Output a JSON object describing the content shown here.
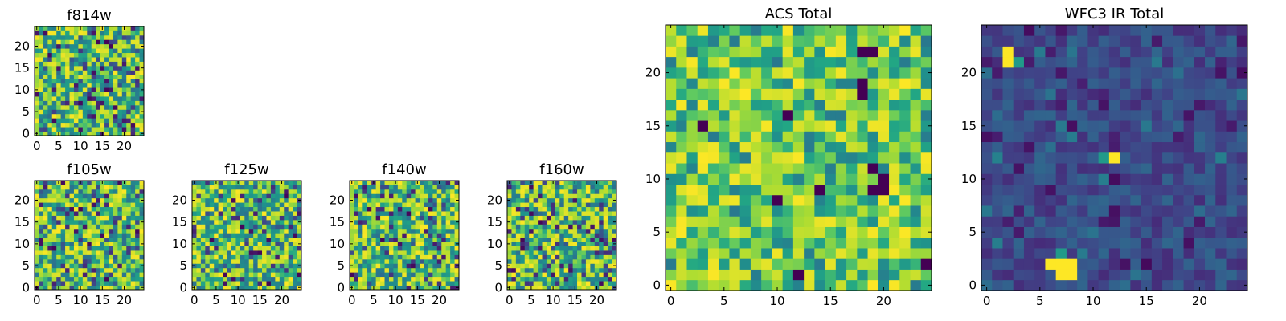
{
  "chart_data": [
    {
      "type": "heatmap",
      "id": "f814w",
      "title": "f814w",
      "grid": 25,
      "xticks": [
        0,
        5,
        10,
        15,
        20
      ],
      "yticks": [
        0,
        5,
        10,
        15,
        20
      ],
      "xlim": [
        0,
        24
      ],
      "ylim": [
        0,
        24
      ],
      "seed": 11,
      "style": "mid",
      "colormap": "viridis"
    },
    {
      "type": "heatmap",
      "id": "f105w",
      "title": "f105w",
      "grid": 25,
      "xticks": [
        0,
        5,
        10,
        15,
        20
      ],
      "yticks": [
        0,
        5,
        10,
        15,
        20
      ],
      "xlim": [
        0,
        24
      ],
      "ylim": [
        0,
        24
      ],
      "seed": 23,
      "style": "mid",
      "colormap": "viridis"
    },
    {
      "type": "heatmap",
      "id": "f125w",
      "title": "f125w",
      "grid": 25,
      "xticks": [
        0,
        5,
        10,
        15,
        20
      ],
      "yticks": [
        0,
        5,
        10,
        15,
        20
      ],
      "xlim": [
        0,
        24
      ],
      "ylim": [
        0,
        24
      ],
      "seed": 37,
      "style": "mid",
      "colormap": "viridis"
    },
    {
      "type": "heatmap",
      "id": "f140w",
      "title": "f140w",
      "grid": 25,
      "xticks": [
        0,
        5,
        10,
        15,
        20
      ],
      "yticks": [
        0,
        5,
        10,
        15,
        20
      ],
      "xlim": [
        0,
        24
      ],
      "ylim": [
        0,
        24
      ],
      "seed": 41,
      "style": "mid",
      "colormap": "viridis"
    },
    {
      "type": "heatmap",
      "id": "f160w",
      "title": "f160w",
      "grid": 25,
      "xticks": [
        0,
        5,
        10,
        15,
        20
      ],
      "yticks": [
        0,
        5,
        10,
        15,
        20
      ],
      "xlim": [
        0,
        24
      ],
      "ylim": [
        0,
        24
      ],
      "seed": 53,
      "style": "mid",
      "colormap": "viridis"
    },
    {
      "type": "heatmap",
      "id": "acs-total",
      "title": "ACS Total",
      "grid": 25,
      "xticks": [
        0,
        5,
        10,
        15,
        20
      ],
      "yticks": [
        0,
        5,
        10,
        15,
        20
      ],
      "xlim": [
        0,
        24
      ],
      "ylim": [
        0,
        24
      ],
      "seed": 67,
      "style": "high",
      "colormap": "viridis",
      "dark_cells": [
        [
          18,
          22
        ],
        [
          19,
          22
        ],
        [
          18,
          19
        ],
        [
          18,
          18
        ],
        [
          19,
          11
        ],
        [
          20,
          10
        ],
        [
          20,
          9
        ],
        [
          19,
          9
        ],
        [
          3,
          15
        ],
        [
          10,
          8
        ],
        [
          14,
          9
        ],
        [
          12,
          1
        ],
        [
          24,
          2
        ],
        [
          11,
          16
        ]
      ]
    },
    {
      "type": "heatmap",
      "id": "wfc3-ir-total",
      "title": "WFC3 IR Total",
      "grid": 25,
      "xticks": [
        0,
        5,
        10,
        15,
        20
      ],
      "yticks": [
        0,
        5,
        10,
        15,
        20
      ],
      "xlim": [
        0,
        24
      ],
      "ylim": [
        0,
        24
      ],
      "seed": 79,
      "style": "low",
      "colormap": "viridis",
      "bright_cells": [
        [
          2,
          22
        ],
        [
          2,
          21
        ],
        [
          12,
          12
        ],
        [
          6,
          2
        ],
        [
          7,
          2
        ],
        [
          8,
          2
        ],
        [
          7,
          1
        ],
        [
          8,
          1
        ]
      ],
      "teal_cells": [
        [
          11,
          12
        ],
        [
          3,
          21
        ],
        [
          7,
          3
        ]
      ]
    }
  ]
}
